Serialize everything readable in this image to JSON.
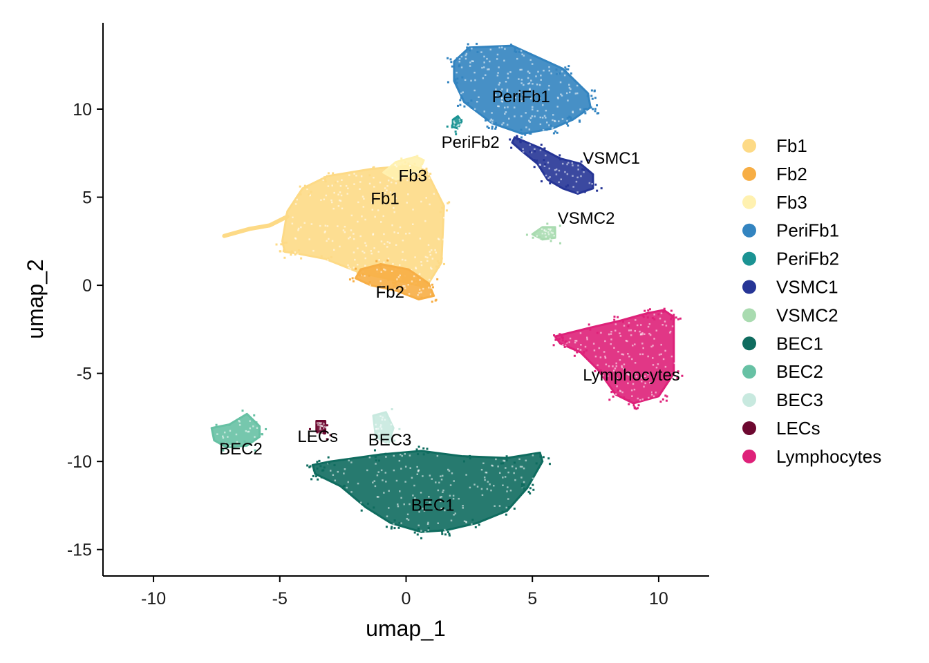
{
  "chart_data": {
    "type": "scatter",
    "xlabel": "umap_1",
    "ylabel": "umap_2",
    "xlim": [
      -12,
      12
    ],
    "ylim": [
      -16.5,
      14.9
    ],
    "x_ticks": [
      -10,
      -5,
      0,
      5,
      10
    ],
    "y_ticks": [
      10,
      5,
      0,
      -5,
      -10,
      -15
    ],
    "x_tick_labels": [
      "-10",
      "-5",
      "0",
      "5",
      "10"
    ],
    "y_tick_labels": [
      "10",
      "5",
      "0",
      "-5",
      "-10",
      "-15"
    ],
    "grid": false,
    "legend": "right",
    "series": [
      {
        "name": "Fb1",
        "color": "#FDDA86",
        "label_pos": [
          -1.4,
          4.6
        ],
        "polygon": [
          [
            -4.7,
            4.2
          ],
          [
            -4.9,
            2.5
          ],
          [
            -4.8,
            1.9
          ],
          [
            -4.3,
            1.8
          ],
          [
            -3.2,
            1.5
          ],
          [
            -1.8,
            0.7
          ],
          [
            -0.5,
            0.3
          ],
          [
            0.8,
            -0.1
          ],
          [
            1.4,
            1.3
          ],
          [
            1.5,
            4.5
          ],
          [
            0.8,
            6.5
          ],
          [
            0.2,
            6.8
          ],
          [
            -1.4,
            6.6
          ],
          [
            -3.1,
            6.2
          ],
          [
            -4.1,
            5.5
          ]
        ],
        "tail": [
          [
            -4.7,
            3.9
          ],
          [
            -5.4,
            3.4
          ],
          [
            -6.2,
            3.2
          ],
          [
            -7.2,
            2.8
          ]
        ]
      },
      {
        "name": "Fb2",
        "color": "#F7AE45",
        "label_pos": [
          -1.2,
          -0.7
        ],
        "polygon": [
          [
            -1.8,
            0.9
          ],
          [
            -1.0,
            1.2
          ],
          [
            0.1,
            0.9
          ],
          [
            0.9,
            0.1
          ],
          [
            1.1,
            -0.6
          ],
          [
            0.5,
            -0.8
          ],
          [
            -0.4,
            -0.3
          ],
          [
            -1.4,
            0.0
          ],
          [
            -2.0,
            0.4
          ]
        ]
      },
      {
        "name": "Fb3",
        "color": "#FFF1B0",
        "label_pos": [
          -0.3,
          5.9
        ],
        "polygon": [
          [
            -0.4,
            7.0
          ],
          [
            0.4,
            7.3
          ],
          [
            0.7,
            7.1
          ],
          [
            0.5,
            6.4
          ],
          [
            -0.4,
            6.0
          ],
          [
            -0.9,
            6.4
          ]
        ]
      },
      {
        "name": "PeriFb1",
        "color": "#3384C0",
        "label_pos": [
          3.4,
          10.4
        ],
        "polygon": [
          [
            1.9,
            12.7
          ],
          [
            2.5,
            13.5
          ],
          [
            4.2,
            13.6
          ],
          [
            6.2,
            12.3
          ],
          [
            7.2,
            10.9
          ],
          [
            7.3,
            10.1
          ],
          [
            6.6,
            9.4
          ],
          [
            5.8,
            8.9
          ],
          [
            4.6,
            8.6
          ],
          [
            3.4,
            9.2
          ],
          [
            2.3,
            10.4
          ],
          [
            1.9,
            11.6
          ]
        ]
      },
      {
        "name": "PeriFb2",
        "color": "#1B9393",
        "label_pos": [
          1.4,
          7.8
        ],
        "polygon": [
          [
            1.85,
            9.4
          ],
          [
            2.05,
            9.6
          ],
          [
            2.2,
            9.3
          ],
          [
            2.05,
            8.9
          ],
          [
            1.85,
            9.0
          ]
        ]
      },
      {
        "name": "VSMC1",
        "color": "#263596",
        "label_pos": [
          7.0,
          6.9
        ],
        "polygon": [
          [
            4.3,
            8.4
          ],
          [
            5.3,
            7.8
          ],
          [
            6.1,
            7.2
          ],
          [
            6.9,
            6.9
          ],
          [
            7.4,
            6.3
          ],
          [
            7.4,
            5.5
          ],
          [
            6.8,
            5.2
          ],
          [
            6.2,
            5.5
          ],
          [
            5.6,
            6.0
          ],
          [
            5.2,
            6.9
          ],
          [
            4.6,
            7.6
          ],
          [
            4.2,
            8.1
          ]
        ]
      },
      {
        "name": "VSMC2",
        "color": "#A9DBB0",
        "label_pos": [
          6.0,
          3.5
        ],
        "polygon": [
          [
            5.0,
            2.9
          ],
          [
            5.4,
            3.3
          ],
          [
            5.9,
            3.3
          ],
          [
            5.9,
            2.7
          ],
          [
            5.4,
            2.6
          ]
        ]
      },
      {
        "name": "BEC1",
        "color": "#0F6C5F",
        "label_pos": [
          0.2,
          -12.8
        ],
        "polygon": [
          [
            -3.7,
            -10.2
          ],
          [
            -3.0,
            -10.0
          ],
          [
            -1.0,
            -9.6
          ],
          [
            0.6,
            -9.4
          ],
          [
            2.2,
            -9.7
          ],
          [
            4.0,
            -9.8
          ],
          [
            5.3,
            -9.5
          ],
          [
            5.4,
            -10.0
          ],
          [
            4.8,
            -11.5
          ],
          [
            4.0,
            -12.8
          ],
          [
            2.8,
            -13.5
          ],
          [
            1.6,
            -13.9
          ],
          [
            0.6,
            -14.0
          ],
          [
            -0.6,
            -13.5
          ],
          [
            -1.6,
            -12.6
          ],
          [
            -2.6,
            -11.4
          ],
          [
            -3.6,
            -10.7
          ]
        ]
      },
      {
        "name": "BEC2",
        "color": "#67C1A4",
        "label_pos": [
          -7.4,
          -9.6
        ],
        "polygon": [
          [
            -7.7,
            -8.1
          ],
          [
            -7.0,
            -7.9
          ],
          [
            -6.3,
            -7.3
          ],
          [
            -5.8,
            -8.0
          ],
          [
            -5.8,
            -8.6
          ],
          [
            -6.3,
            -9.1
          ],
          [
            -7.1,
            -9.2
          ],
          [
            -7.6,
            -8.8
          ]
        ]
      },
      {
        "name": "BEC3",
        "color": "#C8E9DF",
        "label_pos": [
          -1.5,
          -9.1
        ],
        "polygon": [
          [
            -1.3,
            -7.4
          ],
          [
            -0.8,
            -7.2
          ],
          [
            -0.5,
            -8.1
          ],
          [
            -0.7,
            -9.0
          ],
          [
            -1.2,
            -8.6
          ]
        ]
      },
      {
        "name": "LECs",
        "color": "#6D0830",
        "label_pos": [
          -4.3,
          -8.9
        ],
        "polygon": [
          [
            -3.55,
            -7.7
          ],
          [
            -3.2,
            -7.7
          ],
          [
            -3.2,
            -8.4
          ],
          [
            -3.55,
            -8.3
          ]
        ]
      },
      {
        "name": "Lymphocytes",
        "color": "#DE2179",
        "label_pos": [
          7.0,
          -5.4
        ],
        "polygon": [
          [
            5.9,
            -2.9
          ],
          [
            7.3,
            -2.4
          ],
          [
            8.5,
            -2.0
          ],
          [
            9.5,
            -1.6
          ],
          [
            10.2,
            -1.4
          ],
          [
            10.6,
            -1.8
          ],
          [
            10.6,
            -5.0
          ],
          [
            10.0,
            -6.3
          ],
          [
            9.0,
            -6.7
          ],
          [
            8.3,
            -6.2
          ],
          [
            7.6,
            -4.8
          ],
          [
            6.9,
            -3.8
          ],
          [
            6.1,
            -3.3
          ]
        ]
      }
    ]
  }
}
